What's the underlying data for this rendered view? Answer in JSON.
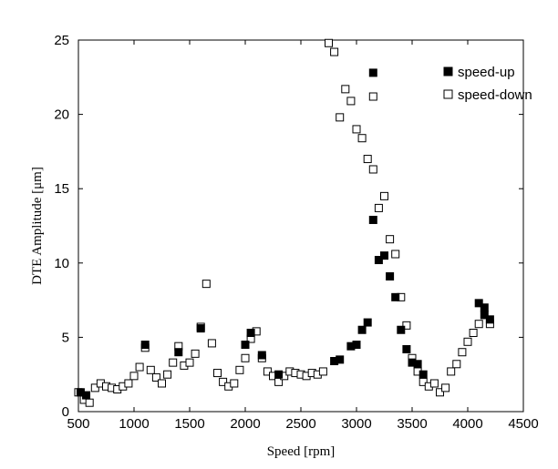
{
  "chart_data": {
    "type": "scatter",
    "xlabel": "Speed [rpm]",
    "ylabel": "DTE Amplitude [μm]",
    "xlim": [
      500,
      4500
    ],
    "ylim": [
      0,
      25
    ],
    "xticks": [
      500,
      1000,
      1500,
      2000,
      2500,
      3000,
      3500,
      4000,
      4500
    ],
    "yticks": [
      0,
      5,
      10,
      15,
      20,
      25
    ],
    "grid": false,
    "legend_position": "top-right",
    "series": [
      {
        "name": "speed-up",
        "marker": "filled-square",
        "color": "#000000",
        "points": [
          [
            520,
            1.3
          ],
          [
            570,
            1.1
          ],
          [
            1100,
            4.5
          ],
          [
            1400,
            4.0
          ],
          [
            1600,
            5.6
          ],
          [
            2000,
            4.5
          ],
          [
            2050,
            5.3
          ],
          [
            2150,
            3.8
          ],
          [
            2300,
            2.5
          ],
          [
            2800,
            3.4
          ],
          [
            2850,
            3.5
          ],
          [
            2950,
            4.4
          ],
          [
            3000,
            4.5
          ],
          [
            3050,
            5.5
          ],
          [
            3100,
            6.0
          ],
          [
            3150,
            22.8
          ],
          [
            3150,
            12.9
          ],
          [
            3200,
            10.2
          ],
          [
            3250,
            10.5
          ],
          [
            3300,
            9.1
          ],
          [
            3350,
            7.7
          ],
          [
            3400,
            5.5
          ],
          [
            3450,
            4.2
          ],
          [
            3500,
            3.3
          ],
          [
            3550,
            3.2
          ],
          [
            3600,
            2.5
          ],
          [
            4100,
            7.3
          ],
          [
            4150,
            7.0
          ],
          [
            4150,
            6.5
          ],
          [
            4200,
            6.2
          ]
        ]
      },
      {
        "name": "speed-down",
        "marker": "hollow-square",
        "color": "#000000",
        "points": [
          [
            500,
            1.3
          ],
          [
            550,
            0.8
          ],
          [
            600,
            0.6
          ],
          [
            650,
            1.6
          ],
          [
            700,
            1.9
          ],
          [
            750,
            1.7
          ],
          [
            800,
            1.6
          ],
          [
            850,
            1.5
          ],
          [
            900,
            1.7
          ],
          [
            950,
            1.9
          ],
          [
            1000,
            2.4
          ],
          [
            1050,
            3.0
          ],
          [
            1100,
            4.3
          ],
          [
            1150,
            2.8
          ],
          [
            1200,
            2.3
          ],
          [
            1250,
            1.9
          ],
          [
            1300,
            2.5
          ],
          [
            1350,
            3.3
          ],
          [
            1400,
            4.4
          ],
          [
            1450,
            3.1
          ],
          [
            1500,
            3.3
          ],
          [
            1550,
            3.9
          ],
          [
            1600,
            5.7
          ],
          [
            1650,
            8.6
          ],
          [
            1700,
            4.6
          ],
          [
            1750,
            2.6
          ],
          [
            1800,
            2.0
          ],
          [
            1850,
            1.7
          ],
          [
            1900,
            1.9
          ],
          [
            1950,
            2.8
          ],
          [
            2000,
            3.6
          ],
          [
            2050,
            4.9
          ],
          [
            2100,
            5.4
          ],
          [
            2150,
            3.6
          ],
          [
            2200,
            2.7
          ],
          [
            2250,
            2.4
          ],
          [
            2300,
            2.0
          ],
          [
            2350,
            2.4
          ],
          [
            2400,
            2.7
          ],
          [
            2450,
            2.6
          ],
          [
            2500,
            2.5
          ],
          [
            2550,
            2.4
          ],
          [
            2600,
            2.6
          ],
          [
            2650,
            2.5
          ],
          [
            2700,
            2.7
          ],
          [
            2750,
            24.8
          ],
          [
            2800,
            24.2
          ],
          [
            2850,
            19.8
          ],
          [
            2900,
            21.7
          ],
          [
            2950,
            20.9
          ],
          [
            3000,
            19.0
          ],
          [
            3050,
            18.4
          ],
          [
            3100,
            17.0
          ],
          [
            3150,
            21.2
          ],
          [
            3150,
            16.3
          ],
          [
            3200,
            13.7
          ],
          [
            3250,
            14.5
          ],
          [
            3300,
            11.6
          ],
          [
            3350,
            10.6
          ],
          [
            3400,
            7.7
          ],
          [
            3450,
            5.8
          ],
          [
            3500,
            3.6
          ],
          [
            3550,
            2.7
          ],
          [
            3600,
            2.0
          ],
          [
            3650,
            1.7
          ],
          [
            3700,
            1.9
          ],
          [
            3750,
            1.3
          ],
          [
            3800,
            1.6
          ],
          [
            3850,
            2.7
          ],
          [
            3900,
            3.2
          ],
          [
            3950,
            4.0
          ],
          [
            4000,
            4.7
          ],
          [
            4050,
            5.3
          ],
          [
            4100,
            5.9
          ],
          [
            4200,
            5.9
          ]
        ]
      }
    ]
  }
}
